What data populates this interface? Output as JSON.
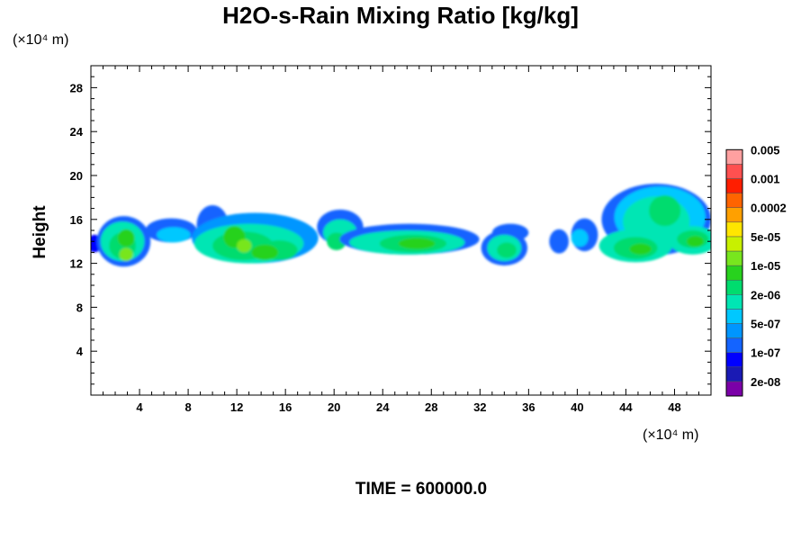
{
  "chart_data": {
    "type": "heatmap",
    "title": "H2O-s-Rain Mixing Ratio [kg/kg]",
    "ylabel": "Height",
    "x_unit_label": "(×10⁴ m)",
    "y_unit_label": "(×10⁴ m)",
    "footer": "TIME = 600000.0",
    "xlim": [
      0,
      51
    ],
    "ylim": [
      0,
      30
    ],
    "x_ticks": [
      4,
      8,
      12,
      16,
      20,
      24,
      28,
      32,
      36,
      40,
      44,
      48
    ],
    "y_ticks": [
      4,
      8,
      12,
      16,
      20,
      24,
      28
    ],
    "colorbar": {
      "colors": [
        "#7b00a8",
        "#1a1ab4",
        "#0000ff",
        "#1464ff",
        "#0096ff",
        "#00c8ff",
        "#00e6b4",
        "#00dc6e",
        "#28d21e",
        "#78e61e",
        "#c8f000",
        "#ffe600",
        "#ffa000",
        "#ff6400",
        "#ff1e00",
        "#ff5050",
        "#ffa0a0"
      ],
      "labels": [
        {
          "index": 1,
          "text": "2e-08"
        },
        {
          "index": 3,
          "text": "1e-07"
        },
        {
          "index": 5,
          "text": "5e-07"
        },
        {
          "index": 7,
          "text": "2e-06"
        },
        {
          "index": 9,
          "text": "1e-05"
        },
        {
          "index": 11,
          "text": "5e-05"
        },
        {
          "index": 13,
          "text": "0.0002"
        },
        {
          "index": 15,
          "text": "0.001"
        },
        {
          "index": 17,
          "text": "0.005"
        }
      ]
    },
    "cells": [
      {
        "x": 0.3,
        "y": 13.8,
        "w": 1.2,
        "h": 1.6,
        "level": 2
      },
      {
        "x": 2.7,
        "y": 14.0,
        "w": 4.4,
        "h": 4.6,
        "level": 3
      },
      {
        "x": 2.6,
        "y": 14.0,
        "w": 3.6,
        "h": 3.6,
        "level": 6
      },
      {
        "x": 2.6,
        "y": 13.6,
        "w": 2.2,
        "h": 2.4,
        "level": 7
      },
      {
        "x": 2.9,
        "y": 14.3,
        "w": 1.4,
        "h": 1.6,
        "level": 8
      },
      {
        "x": 2.9,
        "y": 12.8,
        "w": 1.1,
        "h": 1.2,
        "level": 9
      },
      {
        "x": 6.6,
        "y": 15.0,
        "w": 4.2,
        "h": 2.2,
        "level": 3
      },
      {
        "x": 6.8,
        "y": 14.6,
        "w": 2.8,
        "h": 1.4,
        "level": 5
      },
      {
        "x": 10.0,
        "y": 15.5,
        "w": 2.6,
        "h": 3.6,
        "level": 3
      },
      {
        "x": 13.5,
        "y": 14.3,
        "w": 10.4,
        "h": 4.6,
        "level": 4
      },
      {
        "x": 13.0,
        "y": 13.8,
        "w": 9.0,
        "h": 3.6,
        "level": 6
      },
      {
        "x": 12.5,
        "y": 13.6,
        "w": 5.0,
        "h": 2.6,
        "level": 7
      },
      {
        "x": 15.5,
        "y": 13.2,
        "w": 3.0,
        "h": 1.8,
        "level": 7
      },
      {
        "x": 11.8,
        "y": 14.4,
        "w": 1.8,
        "h": 2.0,
        "level": 8
      },
      {
        "x": 14.3,
        "y": 13.0,
        "w": 2.2,
        "h": 1.4,
        "level": 8
      },
      {
        "x": 12.6,
        "y": 13.6,
        "w": 1.2,
        "h": 1.2,
        "level": 9
      },
      {
        "x": 20.5,
        "y": 15.3,
        "w": 3.8,
        "h": 3.2,
        "level": 3
      },
      {
        "x": 20.5,
        "y": 14.8,
        "w": 2.8,
        "h": 2.4,
        "level": 6
      },
      {
        "x": 20.2,
        "y": 14.0,
        "w": 1.6,
        "h": 1.6,
        "level": 7
      },
      {
        "x": 26.2,
        "y": 14.2,
        "w": 11.5,
        "h": 2.8,
        "level": 3
      },
      {
        "x": 26.0,
        "y": 13.9,
        "w": 9.5,
        "h": 2.2,
        "level": 6
      },
      {
        "x": 26.5,
        "y": 13.8,
        "w": 5.5,
        "h": 1.6,
        "level": 7
      },
      {
        "x": 26.8,
        "y": 13.8,
        "w": 3.0,
        "h": 1.0,
        "level": 8
      },
      {
        "x": 34.5,
        "y": 14.8,
        "w": 3.0,
        "h": 1.6,
        "level": 3
      },
      {
        "x": 34.0,
        "y": 13.4,
        "w": 3.8,
        "h": 3.2,
        "level": 3
      },
      {
        "x": 34.0,
        "y": 13.4,
        "w": 2.8,
        "h": 2.4,
        "level": 6
      },
      {
        "x": 34.2,
        "y": 13.2,
        "w": 1.6,
        "h": 1.4,
        "level": 7
      },
      {
        "x": 38.5,
        "y": 14.0,
        "w": 1.6,
        "h": 2.2,
        "level": 3
      },
      {
        "x": 40.6,
        "y": 14.6,
        "w": 2.2,
        "h": 3.0,
        "level": 3
      },
      {
        "x": 40.2,
        "y": 14.3,
        "w": 1.4,
        "h": 1.6,
        "level": 5
      },
      {
        "x": 46.5,
        "y": 16.0,
        "w": 9.0,
        "h": 6.5,
        "level": 3
      },
      {
        "x": 46.8,
        "y": 16.2,
        "w": 7.5,
        "h": 5.6,
        "level": 5
      },
      {
        "x": 46.5,
        "y": 15.8,
        "w": 5.5,
        "h": 4.6,
        "level": 6
      },
      {
        "x": 47.2,
        "y": 16.8,
        "w": 2.6,
        "h": 2.8,
        "level": 7
      },
      {
        "x": 44.8,
        "y": 13.6,
        "w": 6.0,
        "h": 3.0,
        "level": 6
      },
      {
        "x": 44.8,
        "y": 13.4,
        "w": 3.6,
        "h": 2.0,
        "level": 7
      },
      {
        "x": 45.2,
        "y": 13.3,
        "w": 1.8,
        "h": 1.0,
        "level": 8
      },
      {
        "x": 49.5,
        "y": 14.1,
        "w": 4.0,
        "h": 2.6,
        "level": 6
      },
      {
        "x": 49.5,
        "y": 14.2,
        "w": 2.6,
        "h": 1.6,
        "level": 7
      },
      {
        "x": 49.7,
        "y": 14.0,
        "w": 1.4,
        "h": 1.0,
        "level": 8
      }
    ]
  }
}
